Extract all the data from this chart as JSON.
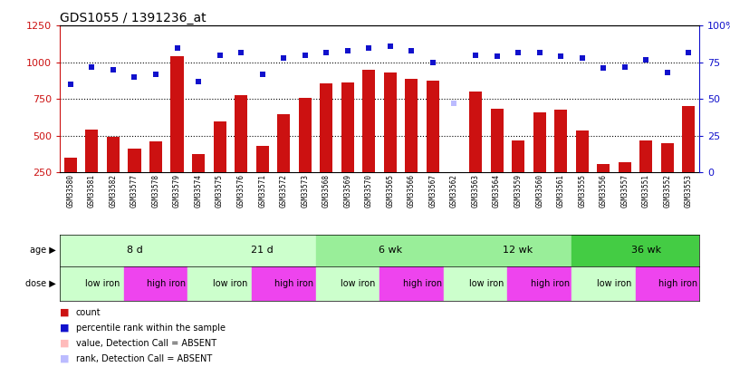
{
  "title": "GDS1055 / 1391236_at",
  "samples": [
    "GSM33580",
    "GSM33581",
    "GSM33582",
    "GSM33577",
    "GSM33578",
    "GSM33579",
    "GSM33574",
    "GSM33575",
    "GSM33576",
    "GSM33571",
    "GSM33572",
    "GSM33573",
    "GSM33568",
    "GSM33569",
    "GSM33570",
    "GSM33565",
    "GSM33566",
    "GSM33567",
    "GSM33562",
    "GSM33563",
    "GSM33564",
    "GSM33559",
    "GSM33560",
    "GSM33561",
    "GSM33555",
    "GSM33556",
    "GSM33557",
    "GSM33551",
    "GSM33552",
    "GSM33553"
  ],
  "counts": [
    350,
    540,
    490,
    415,
    465,
    1045,
    375,
    600,
    775,
    430,
    645,
    760,
    855,
    865,
    950,
    930,
    885,
    875,
    null,
    800,
    685,
    470,
    660,
    680,
    535,
    310,
    320,
    470,
    450,
    700
  ],
  "ranks": [
    60,
    72,
    70,
    65,
    67,
    85,
    62,
    80,
    82,
    67,
    78,
    80,
    82,
    83,
    85,
    86,
    83,
    75,
    null,
    80,
    79,
    82,
    82,
    79,
    78,
    71,
    72,
    77,
    68,
    82
  ],
  "absent_idx": 18,
  "absent_count_val": 250,
  "absent_rank_val": 47,
  "ages": [
    {
      "label": "8 d",
      "start": 0,
      "end": 6,
      "color": "#ccffcc"
    },
    {
      "label": "21 d",
      "start": 6,
      "end": 12,
      "color": "#ccffcc"
    },
    {
      "label": "6 wk",
      "start": 12,
      "end": 18,
      "color": "#99ee99"
    },
    {
      "label": "12 wk",
      "start": 18,
      "end": 24,
      "color": "#99ee99"
    },
    {
      "label": "36 wk",
      "start": 24,
      "end": 30,
      "color": "#44cc44"
    }
  ],
  "doses": [
    {
      "label": "low iron",
      "start": 0,
      "end": 3,
      "color": "#ccffcc"
    },
    {
      "label": "high iron",
      "start": 3,
      "end": 6,
      "color": "#ee44ee"
    },
    {
      "label": "low iron",
      "start": 6,
      "end": 9,
      "color": "#ccffcc"
    },
    {
      "label": "high iron",
      "start": 9,
      "end": 12,
      "color": "#ee44ee"
    },
    {
      "label": "low iron",
      "start": 12,
      "end": 15,
      "color": "#ccffcc"
    },
    {
      "label": "high iron",
      "start": 15,
      "end": 18,
      "color": "#ee44ee"
    },
    {
      "label": "low iron",
      "start": 18,
      "end": 21,
      "color": "#ccffcc"
    },
    {
      "label": "high iron",
      "start": 21,
      "end": 24,
      "color": "#ee44ee"
    },
    {
      "label": "low iron",
      "start": 24,
      "end": 27,
      "color": "#ccffcc"
    },
    {
      "label": "high iron",
      "start": 27,
      "end": 30,
      "color": "#ee44ee"
    }
  ],
  "bar_color": "#cc1111",
  "scatter_color": "#1111cc",
  "absent_bar_color": "#ffbbbb",
  "absent_scatter_color": "#bbbbff",
  "left_ylim": [
    250,
    1250
  ],
  "right_ylim": [
    0,
    100
  ],
  "left_yticks": [
    250,
    500,
    750,
    1000,
    1250
  ],
  "right_yticks": [
    0,
    25,
    50,
    75,
    100
  ],
  "hlines": [
    500,
    750,
    1000
  ],
  "tick_bg_color": "#d4d4d4",
  "legend_items": [
    {
      "color": "#cc1111",
      "label": "count"
    },
    {
      "color": "#1111cc",
      "label": "percentile rank within the sample"
    },
    {
      "color": "#ffbbbb",
      "label": "value, Detection Call = ABSENT"
    },
    {
      "color": "#bbbbff",
      "label": "rank, Detection Call = ABSENT"
    }
  ]
}
